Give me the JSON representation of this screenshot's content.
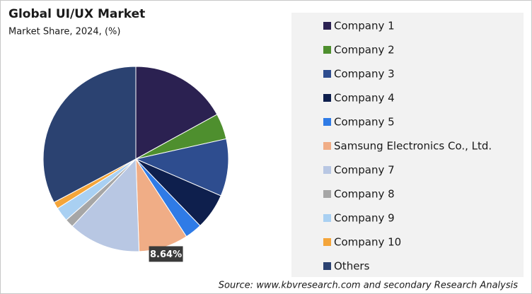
{
  "chart_data": {
    "type": "pie",
    "title": "Global UI/UX Market",
    "subtitle": "Market Share, 2024, (%)",
    "categories": [
      "Company 1",
      "Company 2",
      "Company 3",
      "Company 4",
      "Company 5",
      "Samsung Electronics Co., Ltd.",
      "Company 7",
      "Company 8",
      "Company 9",
      "Company 10",
      "Others"
    ],
    "values": [
      17,
      4.5,
      10,
      6.3,
      3,
      8.64,
      12.6,
      1.5,
      2.5,
      1.2,
      32.76
    ],
    "value_labels": [
      null,
      null,
      null,
      null,
      null,
      "8.64%",
      null,
      null,
      null,
      null,
      null
    ],
    "colors": [
      "#2b2151",
      "#4e8f2e",
      "#2e4d8f",
      "#0e1f4d",
      "#2f7be6",
      "#f0ad86",
      "#b8c7e3",
      "#a6a6a6",
      "#a9d0f2",
      "#f4a53a",
      "#2b4271"
    ],
    "source": "Source: www.kbvresearch.com and secondary Research Analysis"
  }
}
